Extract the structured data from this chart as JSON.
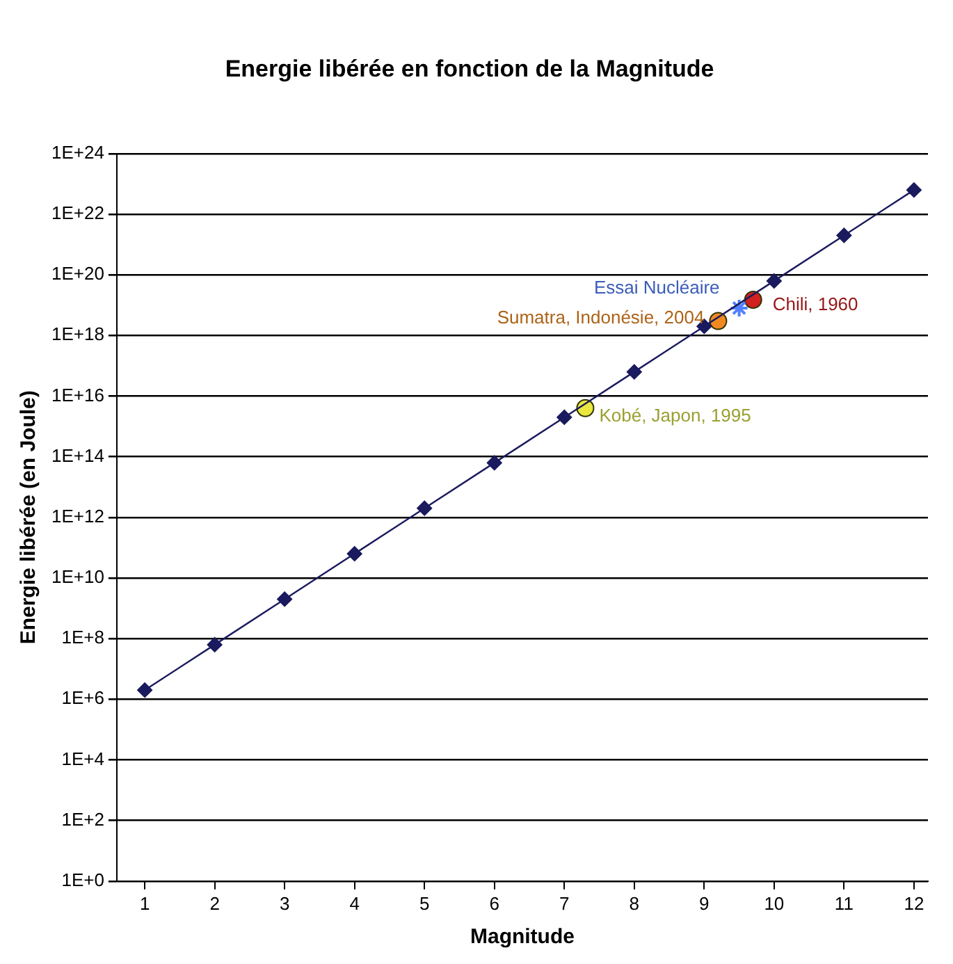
{
  "chart_data": {
    "type": "scatter",
    "title": "Energie libérée en fonction de la Magnitude",
    "xlabel": "Magnitude",
    "ylabel": "Energie libérée (en Joule)",
    "series": [
      {
        "type": "line",
        "color": "#1a1a5e",
        "marker": "diamond",
        "line_style": "solid",
        "x": [
          1,
          2,
          3,
          4,
          5,
          6,
          7,
          8,
          9,
          10,
          11,
          12
        ],
        "values": [
          2000000.0,
          63000000.0,
          2000000000.0,
          63000000000.0,
          2000000000000.0,
          63000000000000.0,
          2000000000000000.0,
          6.3e+16,
          2e+18,
          6.3e+19,
          2e+21,
          6.3e+22
        ]
      },
      {
        "type": "scatter",
        "color": "#e8e840",
        "marker": "circle",
        "x": [
          7.3
        ],
        "values": [
          4000000000000000.0
        ]
      },
      {
        "type": "scatter",
        "color": "#f08a20",
        "marker": "circle",
        "x": [
          9.2
        ],
        "values": [
          3e+18
        ]
      },
      {
        "type": "scatter",
        "color": "#5080ff",
        "marker": "cross",
        "x": [
          9.5
        ],
        "values": [
          8e+18
        ]
      },
      {
        "type": "scatter",
        "color": "#d02020",
        "marker": "circle",
        "x": [
          9.7
        ],
        "values": [
          1.5e+19
        ]
      }
    ],
    "annotations": [
      {
        "text": "Kobé, Japon, 1995",
        "x": 7.3,
        "y": 4000000000000000.0
      },
      {
        "text": "Sumatra, Indonésie, 2004",
        "x": 9.2,
        "y": 3e+18
      },
      {
        "text": "Essai Nucléaire",
        "x": 9.5,
        "y": 8e+18
      },
      {
        "text": "Chili, 1960",
        "x": 9.7,
        "y": 1.5e+19
      }
    ],
    "log": "y",
    "xlim": [
      0.6,
      12.2
    ],
    "xticks": [
      1,
      2,
      3,
      4,
      5,
      6,
      7,
      8,
      9,
      10,
      11,
      12
    ],
    "ylim": [
      1,
      1e+24
    ],
    "yticks": [
      {
        "value": 1,
        "label": "1E+0"
      },
      {
        "value": 100.0,
        "label": "1E+2"
      },
      {
        "value": 10000.0,
        "label": "1E+4"
      },
      {
        "value": 1000000.0,
        "label": "1E+6"
      },
      {
        "value": 100000000.0,
        "label": "1E+8"
      },
      {
        "value": 10000000000.0,
        "label": "1E+10"
      },
      {
        "value": 1000000000000.0,
        "label": "1E+12"
      },
      {
        "value": 100000000000000.0,
        "label": "1E+14"
      },
      {
        "value": 1e+16,
        "label": "1E+16"
      },
      {
        "value": 1e+18,
        "label": "1E+18"
      },
      {
        "value": 1e+20,
        "label": "1E+20"
      },
      {
        "value": 1e+22,
        "label": "1E+22"
      },
      {
        "value": 1e+24,
        "label": "1E+24"
      }
    ],
    "grid": "y",
    "legend": false
  }
}
